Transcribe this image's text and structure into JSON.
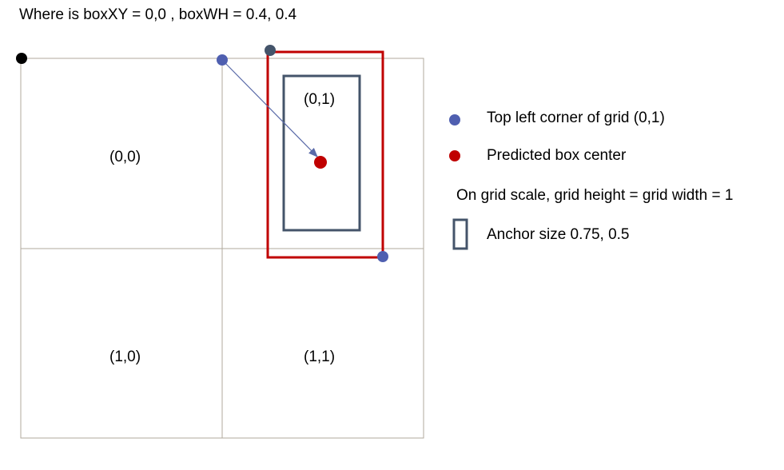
{
  "title": "Where is boxXY = 0,0 , boxWH = 0.4, 0.4",
  "grid": {
    "cells": [
      {
        "label": "(0,0)"
      },
      {
        "label": "(0,1)"
      },
      {
        "label": "(1,0)"
      },
      {
        "label": "(1,1)"
      }
    ]
  },
  "legend": {
    "top_left_corner": "Top left corner of grid (0,1)",
    "predicted_center": "Predicted box center",
    "grid_scale_note": "On grid scale, grid height = grid width = 1",
    "anchor_size": "Anchor size 0.75, 0.5"
  },
  "colors": {
    "grid_line": "#b0aa9c",
    "anchor_box": "#44546a",
    "predicted_box": "#c00000",
    "corner_dot": "#4f5fb0",
    "center_dot": "#c00000",
    "origin_dot": "#000000",
    "anchor_corner_dot": "#44546a",
    "arrow": "#5a6aa8"
  }
}
